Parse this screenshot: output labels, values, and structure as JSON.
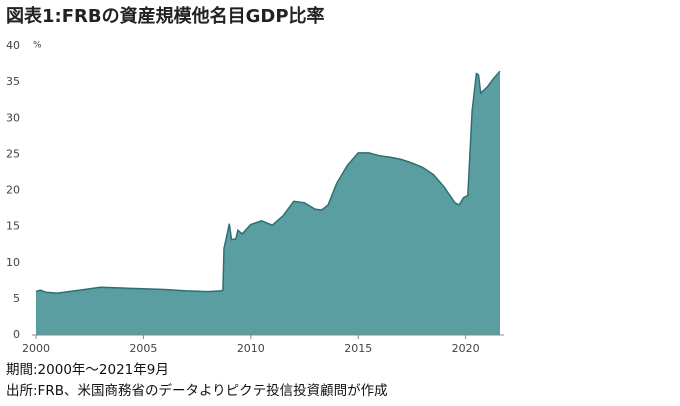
{
  "chart_data": {
    "type": "area",
    "title": "図表1:FRBの資産規模他名目GDP比率",
    "ylabel": "%",
    "footnotes": [
      "期間:2000年～2021年9月",
      "出所:FRB、米国商務省のデータよりピクテ投信投資顧問が作成"
    ],
    "x": [
      2000.0,
      2000.2,
      2000.5,
      2001.0,
      2002.0,
      2003.0,
      2004.0,
      2005.0,
      2006.0,
      2007.0,
      2008.0,
      2008.6,
      2008.7,
      2008.75,
      2008.9,
      2009.0,
      2009.1,
      2009.3,
      2009.4,
      2009.6,
      2010.0,
      2010.5,
      2011.0,
      2011.5,
      2012.0,
      2012.5,
      2013.0,
      2013.3,
      2013.6,
      2014.0,
      2014.5,
      2015.0,
      2015.5,
      2016.0,
      2016.5,
      2017.0,
      2017.5,
      2018.0,
      2018.5,
      2019.0,
      2019.5,
      2019.7,
      2019.9,
      2020.1,
      2020.3,
      2020.5,
      2020.6,
      2020.7,
      2021.0,
      2021.3,
      2021.45,
      2021.6
    ],
    "values": [
      6.0,
      6.2,
      5.9,
      5.8,
      6.2,
      6.6,
      6.5,
      6.4,
      6.3,
      6.1,
      6.0,
      6.1,
      6.2,
      12.0,
      14.0,
      15.4,
      13.2,
      13.3,
      14.5,
      14.0,
      15.3,
      15.8,
      15.2,
      16.5,
      18.5,
      18.3,
      17.4,
      17.3,
      18.0,
      21.0,
      23.5,
      25.2,
      25.2,
      24.8,
      24.6,
      24.3,
      23.8,
      23.2,
      22.2,
      20.5,
      18.3,
      18.0,
      19.0,
      19.3,
      31.0,
      36.2,
      36.0,
      33.5,
      34.3,
      35.5,
      36.0,
      36.5
    ],
    "color": "#5b9ea1",
    "line_color": "#2f6f71",
    "xlim": [
      2000,
      2021.6
    ],
    "xticks": [
      2000,
      2005,
      2010,
      2015,
      2020
    ],
    "ylim": [
      0,
      40
    ],
    "yticks": [
      0,
      5,
      10,
      15,
      20,
      25,
      30,
      35,
      40
    ],
    "grid": false
  }
}
